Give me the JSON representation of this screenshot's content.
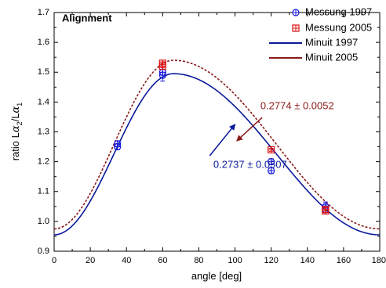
{
  "chart_data": {
    "type": "scatter",
    "title": "Alignment",
    "xlabel": "angle [deg]",
    "ylabel_prefix": "ratio L",
    "ylabel_alpha": "α",
    "ylabel_sub1": "2",
    "ylabel_slash": "/L",
    "ylabel_sub2": "1",
    "xlim": [
      0,
      180
    ],
    "ylim": [
      0.9,
      1.7
    ],
    "xticks": [
      0,
      20,
      40,
      60,
      80,
      100,
      120,
      140,
      160,
      180
    ],
    "xtick_labels": [
      "0",
      "20",
      "40",
      "60",
      "80",
      "100",
      "120",
      "140",
      "160",
      "180"
    ],
    "yticks": [
      0.9,
      1.0,
      1.1,
      1.2,
      1.3,
      1.4,
      1.5,
      1.6,
      1.7
    ],
    "ytick_labels": [
      "0.9",
      "1.0",
      "1.1",
      "1.2",
      "1.3",
      "1.4",
      "1.5",
      "1.6",
      "1.7"
    ],
    "legend_position": "top-right",
    "series": [
      {
        "name": "Messung 1997",
        "kind": "points",
        "marker": "circle-plus",
        "color": "#1a1adc",
        "points": [
          {
            "x": 35,
            "y": 1.26,
            "err": 0.01
          },
          {
            "x": 35,
            "y": 1.25,
            "err": 0.01
          },
          {
            "x": 60,
            "y": 1.5,
            "err": 0.02
          },
          {
            "x": 60,
            "y": 1.49,
            "err": 0.02
          },
          {
            "x": 120,
            "y": 1.2,
            "err": 0.01
          },
          {
            "x": 120,
            "y": 1.17,
            "err": 0.01
          },
          {
            "x": 150,
            "y": 1.05,
            "err": 0.015
          },
          {
            "x": 150,
            "y": 1.04,
            "err": 0.015
          }
        ]
      },
      {
        "name": "Messung 2005",
        "kind": "points",
        "marker": "square-plus",
        "color": "#dd1111",
        "points": [
          {
            "x": 60,
            "y": 1.53,
            "err": 0.005
          },
          {
            "x": 60,
            "y": 1.52,
            "err": 0.005
          },
          {
            "x": 120,
            "y": 1.24,
            "err": 0.005
          },
          {
            "x": 150,
            "y": 1.04,
            "err": 0.005
          },
          {
            "x": 150,
            "y": 1.035,
            "err": 0.005
          }
        ]
      },
      {
        "name": "Minuit 1997",
        "kind": "curve",
        "style": "solid",
        "color": "#0a1a9a",
        "curve": {
          "base": 0.955,
          "amp": 0.54,
          "peak": 66
        }
      },
      {
        "name": "Minuit 2005",
        "kind": "curve",
        "style": "dashed",
        "color": "#8b1a1a",
        "curve": {
          "base": 0.975,
          "amp": 0.565,
          "peak": 66
        }
      }
    ],
    "annotations": [
      {
        "text": "0.2774 ± 0.0052",
        "color": "#8b1a1a",
        "text_x": 114,
        "text_y": 1.385,
        "arrow_from_x": 115,
        "arrow_from_y": 1.348,
        "arrow_to_x": 101,
        "arrow_to_y": 1.27
      },
      {
        "text": "0.2737 ± 0.0507",
        "color": "#0a1a9a",
        "text_x": 88,
        "text_y": 1.188,
        "arrow_from_x": 86,
        "arrow_from_y": 1.22,
        "arrow_to_x": 100,
        "arrow_to_y": 1.325
      }
    ]
  }
}
